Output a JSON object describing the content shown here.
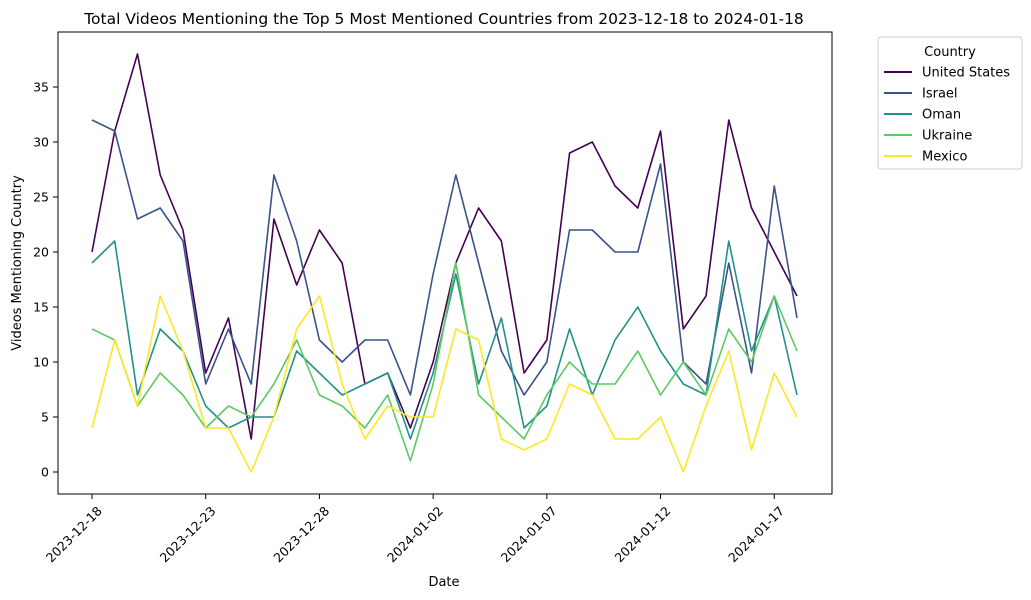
{
  "chart_data": {
    "type": "line",
    "title": "Total Videos Mentioning the Top 5 Most Mentioned Countries from 2023-12-18 to 2024-01-18",
    "xlabel": "Date",
    "ylabel": "Videos Mentioning Country",
    "x": [
      "2023-12-18",
      "2023-12-19",
      "2023-12-20",
      "2023-12-21",
      "2023-12-22",
      "2023-12-23",
      "2023-12-24",
      "2023-12-25",
      "2023-12-26",
      "2023-12-27",
      "2023-12-28",
      "2023-12-29",
      "2023-12-30",
      "2023-12-31",
      "2024-01-01",
      "2024-01-02",
      "2024-01-03",
      "2024-01-04",
      "2024-01-05",
      "2024-01-06",
      "2024-01-07",
      "2024-01-08",
      "2024-01-09",
      "2024-01-10",
      "2024-01-11",
      "2024-01-12",
      "2024-01-13",
      "2024-01-14",
      "2024-01-15",
      "2024-01-16",
      "2024-01-17",
      "2024-01-18"
    ],
    "x_ticks": [
      "2023-12-18",
      "2023-12-23",
      "2023-12-28",
      "2024-01-02",
      "2024-01-07",
      "2024-01-12",
      "2024-01-17"
    ],
    "y_ticks": [
      0,
      5,
      10,
      15,
      20,
      25,
      30,
      35
    ],
    "ylim": [
      -2,
      40
    ],
    "legend_title": "Country",
    "legend_position": "outside-top-right",
    "grid": false,
    "series": [
      {
        "name": "United States",
        "color": "#440154",
        "values": [
          20,
          31,
          38,
          27,
          22,
          9,
          14,
          3,
          23,
          17,
          22,
          19,
          8,
          9,
          4,
          10,
          19,
          24,
          21,
          9,
          12,
          29,
          30,
          26,
          24,
          31,
          13,
          16,
          32,
          24,
          20,
          16
        ]
      },
      {
        "name": "Israel",
        "color": "#3b528b",
        "values": [
          32,
          31,
          23,
          24,
          21,
          8,
          13,
          8,
          27,
          21,
          12,
          10,
          12,
          12,
          7,
          18,
          27,
          19,
          11,
          7,
          10,
          22,
          22,
          20,
          20,
          28,
          10,
          8,
          19,
          9,
          26,
          14
        ]
      },
      {
        "name": "Oman",
        "color": "#21918c",
        "values": [
          19,
          21,
          7,
          13,
          11,
          6,
          4,
          5,
          5,
          11,
          9,
          7,
          8,
          9,
          3,
          9,
          18,
          8,
          14,
          4,
          6,
          13,
          7,
          12,
          15,
          11,
          8,
          7,
          21,
          11,
          16,
          7
        ]
      },
      {
        "name": "Ukraine",
        "color": "#5ec962",
        "values": [
          13,
          12,
          6,
          9,
          7,
          4,
          6,
          5,
          8,
          12,
          7,
          6,
          4,
          7,
          1,
          8,
          19,
          7,
          5,
          3,
          7,
          10,
          8,
          8,
          11,
          7,
          10,
          7,
          13,
          10,
          16,
          11
        ]
      },
      {
        "name": "Mexico",
        "color": "#fde725",
        "values": [
          4,
          12,
          6,
          16,
          11,
          4,
          4,
          0,
          5,
          13,
          16,
          8,
          3,
          6,
          5,
          5,
          13,
          12,
          3,
          2,
          3,
          8,
          7,
          3,
          3,
          5,
          0,
          6,
          11,
          2,
          9,
          5
        ]
      }
    ]
  }
}
